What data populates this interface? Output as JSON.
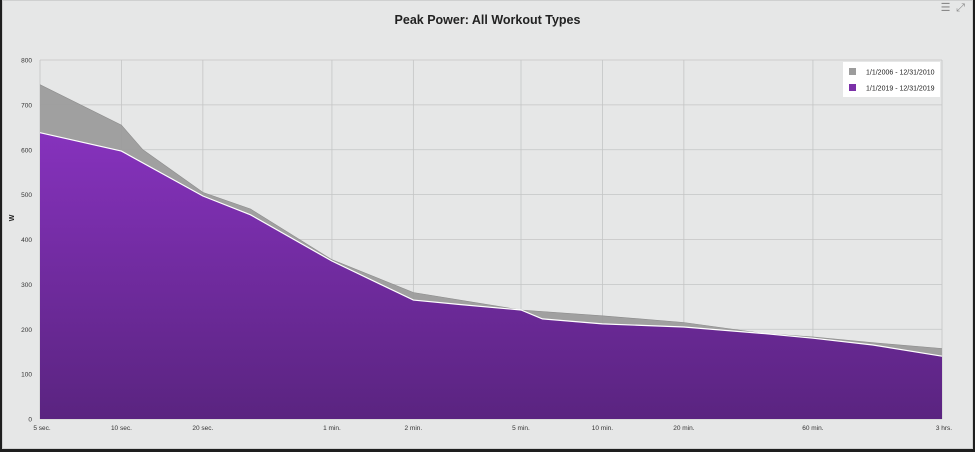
{
  "toolbar": {
    "menu_icon": "menu-icon",
    "expand_icon": "expand-icon"
  },
  "chart_data": {
    "type": "area",
    "title": "Peak Power: All Workout Types",
    "ylabel": "W",
    "xlabel": "",
    "ylim": [
      0,
      800
    ],
    "y_ticks": [
      0,
      100,
      200,
      300,
      400,
      500,
      600,
      700,
      800
    ],
    "x_scale": "log",
    "x_ticks": [
      {
        "seconds": 5,
        "label": "5 sec."
      },
      {
        "seconds": 10,
        "label": "10 sec."
      },
      {
        "seconds": 20,
        "label": "20 sec."
      },
      {
        "seconds": 60,
        "label": "1 min."
      },
      {
        "seconds": 120,
        "label": "2 min."
      },
      {
        "seconds": 300,
        "label": "5 min."
      },
      {
        "seconds": 600,
        "label": "10 min."
      },
      {
        "seconds": 1200,
        "label": "20 min."
      },
      {
        "seconds": 3600,
        "label": "60 min."
      },
      {
        "seconds": 10800,
        "label": "3 hrs."
      }
    ],
    "grid": true,
    "legend_position": "top-right",
    "series": [
      {
        "name": "1/1/2006 - 12/31/2010",
        "color": "#9c9c9c",
        "x": [
          5,
          10,
          12,
          20,
          30,
          60,
          120,
          300,
          600,
          1200,
          2400,
          3600,
          6000,
          10800
        ],
        "y": [
          745,
          655,
          600,
          505,
          468,
          355,
          282,
          243,
          230,
          215,
          190,
          183,
          170,
          157
        ]
      },
      {
        "name": "1/1/2019 - 12/31/2019",
        "color": "#7b30a8",
        "x": [
          5,
          10,
          20,
          30,
          60,
          120,
          180,
          300,
          360,
          600,
          1200,
          2400,
          3600,
          6000,
          10800
        ],
        "y": [
          638,
          597,
          497,
          455,
          352,
          265,
          255,
          243,
          223,
          212,
          205,
          190,
          180,
          165,
          140
        ]
      }
    ]
  }
}
